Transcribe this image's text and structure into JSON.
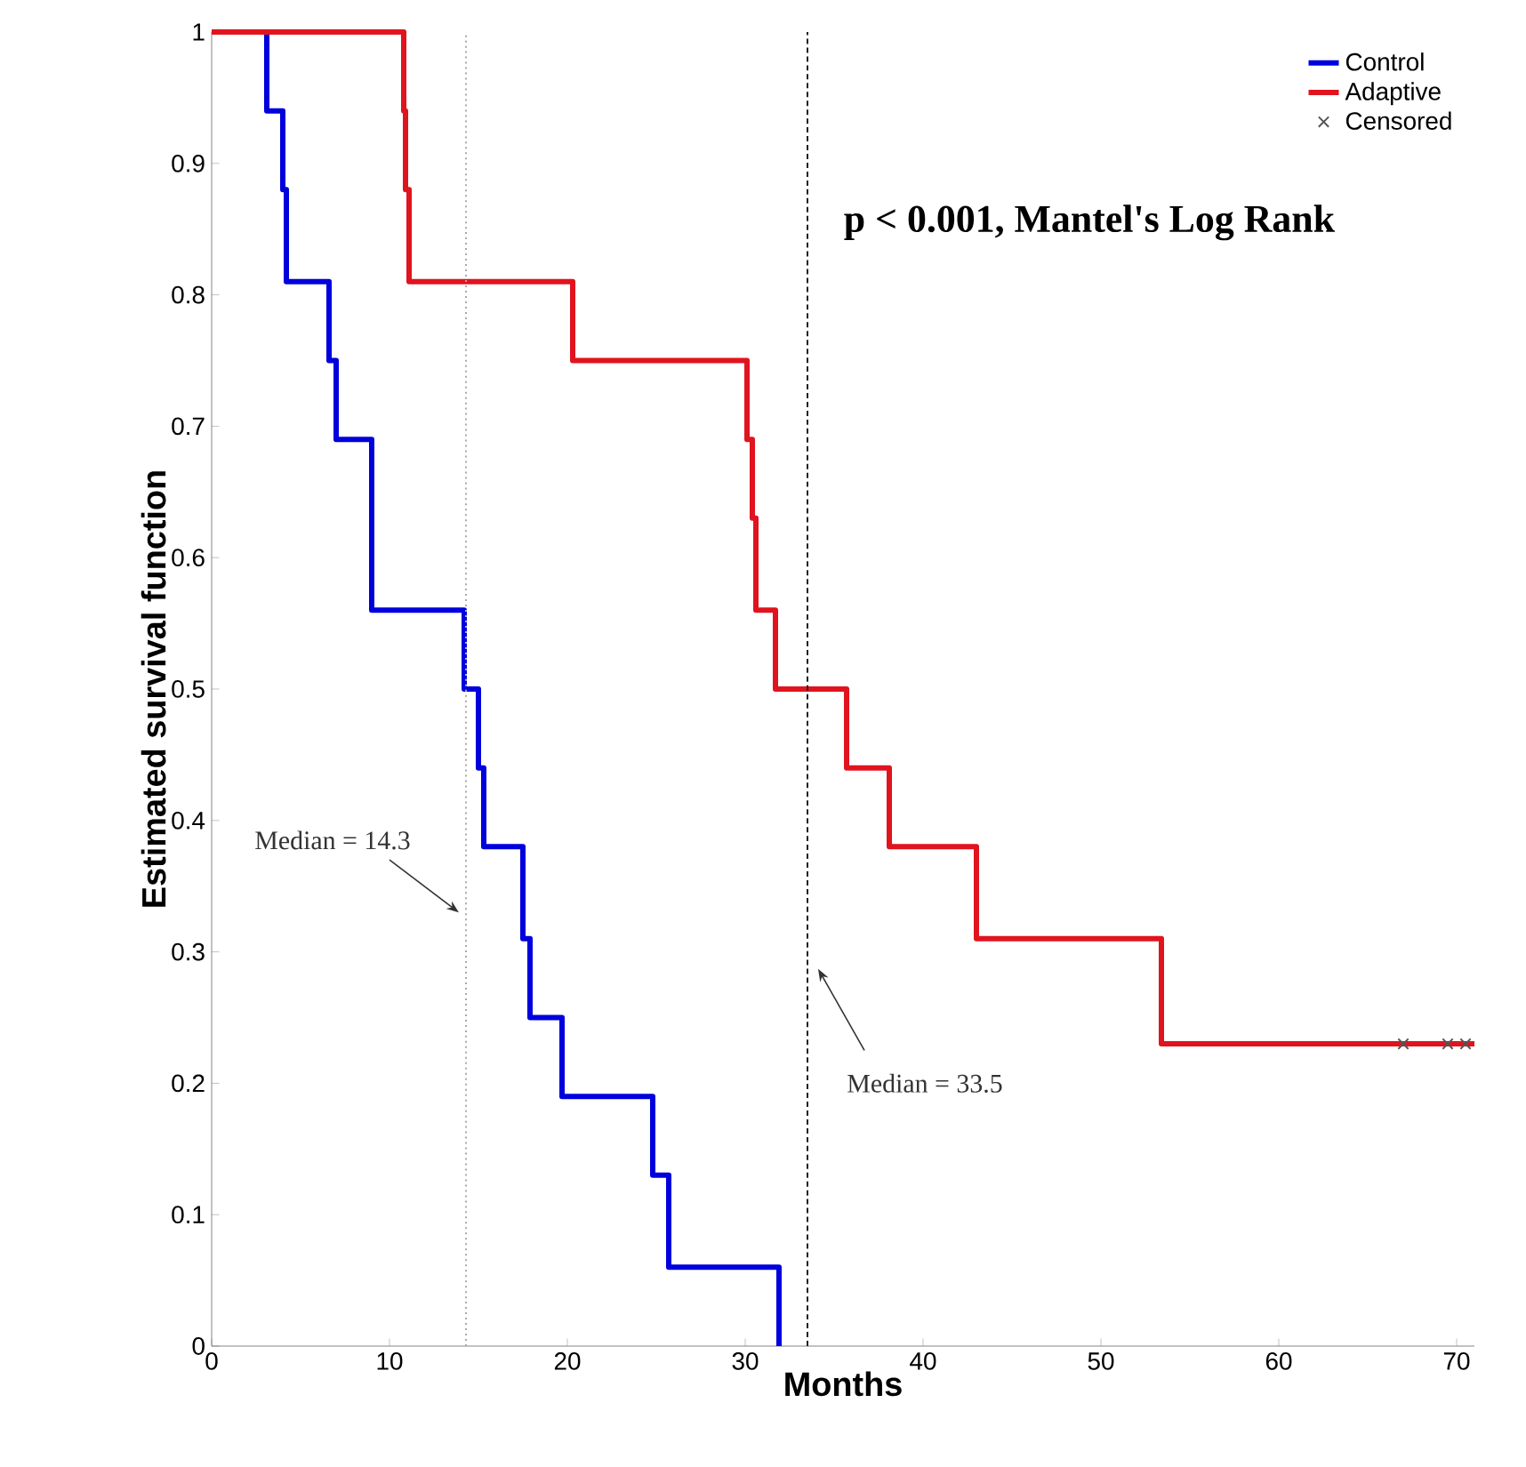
{
  "chart_data": {
    "type": "step",
    "xlabel": "Months",
    "ylabel": "Estimated survival function",
    "xlim": [
      0,
      71
    ],
    "ylim": [
      0,
      1
    ],
    "xticks": [
      0,
      10,
      20,
      30,
      40,
      50,
      60,
      70
    ],
    "yticks": [
      0,
      0.1,
      0.2,
      0.3,
      0.4,
      0.5,
      0.6,
      0.7,
      0.8,
      0.9,
      1
    ],
    "legend": "top right",
    "grid": false,
    "series": [
      {
        "name": "Control",
        "color": "#0000dd",
        "x": [
          0,
          3.1,
          4.0,
          4.2,
          6.6,
          7.0,
          9.0,
          14.2,
          15.0,
          15.3,
          17.5,
          17.9,
          19.7,
          24.8,
          25.7,
          31.9
        ],
        "values": [
          1,
          0.94,
          0.88,
          0.81,
          0.75,
          0.69,
          0.56,
          0.5,
          0.44,
          0.38,
          0.31,
          0.25,
          0.19,
          0.13,
          0.06,
          0
        ]
      },
      {
        "name": "Adaptive",
        "color": "#e0141e",
        "x": [
          0,
          10.8,
          10.9,
          11.1,
          20.3,
          30.1,
          30.4,
          30.6,
          31.7,
          35.7,
          38.1,
          43.0,
          53.4,
          71
        ],
        "values": [
          1,
          0.94,
          0.88,
          0.81,
          0.75,
          0.69,
          0.63,
          0.56,
          0.5,
          0.44,
          0.38,
          0.31,
          0.23,
          0.23
        ]
      },
      {
        "name": "Censored",
        "type": "scatter",
        "marker": "cross",
        "color": "#555555",
        "x": [
          67,
          69.5,
          70.5
        ],
        "values": [
          0.23,
          0.23,
          0.23
        ]
      }
    ],
    "ref_lines": [
      {
        "axis": "x",
        "value": 14.3,
        "label": "Median = 14.3",
        "color": "#aaaaaa",
        "line_style": "dotted"
      },
      {
        "axis": "x",
        "value": 33.5,
        "label": "Median = 33.5",
        "color": "#222222",
        "line_style": "dashed"
      }
    ],
    "annotations": [
      "p < 0.001, Mantel's Log Rank"
    ]
  }
}
